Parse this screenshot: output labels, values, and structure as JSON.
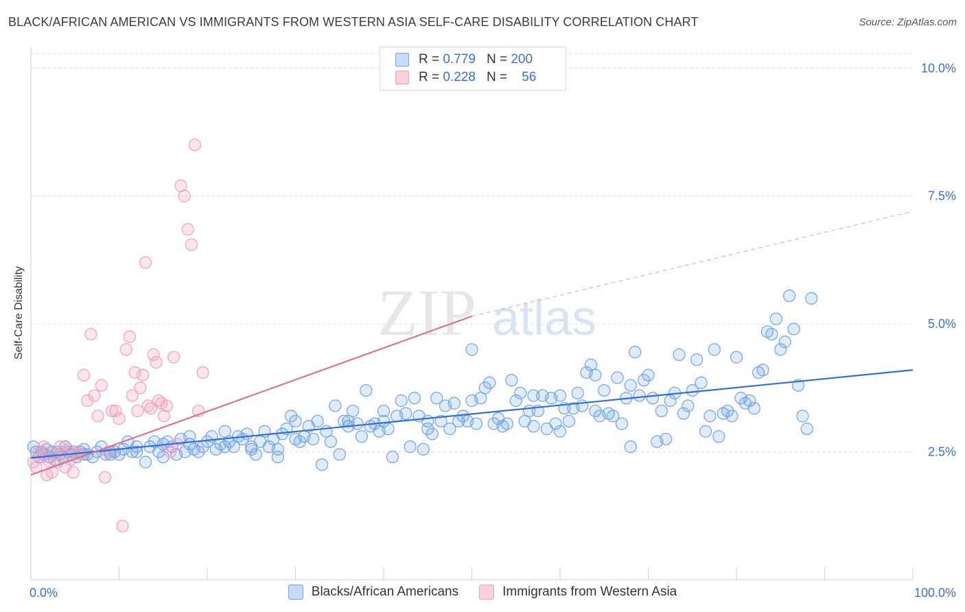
{
  "title": "BLACK/AFRICAN AMERICAN VS IMMIGRANTS FROM WESTERN ASIA SELF-CARE DISABILITY CORRELATION CHART",
  "source": "Source: ZipAtlas.com",
  "watermark": {
    "zip": "ZIP",
    "atlas": "atlas"
  },
  "legend_top": [
    {
      "r_label": "R =",
      "r_value": "0.779",
      "n_label": "N =",
      "n_value": "200",
      "color": "#6fa2e6"
    },
    {
      "r_label": "R =",
      "r_value": "0.228",
      "n_label": "N =",
      "n_value": "56",
      "color": "#f0a0bc"
    }
  ],
  "legend_bottom": [
    {
      "label": "Blacks/African Americans",
      "color": "#6fa2e6"
    },
    {
      "label": "Immigrants from Western Asia",
      "color": "#f0a0bc"
    }
  ],
  "chart_data": {
    "type": "scatter",
    "title": "BLACK/AFRICAN AMERICAN VS IMMIGRANTS FROM WESTERN ASIA SELF-CARE DISABILITY CORRELATION CHART",
    "xlabel": "",
    "ylabel": "Self-Care Disability",
    "xlim": [
      0,
      100
    ],
    "ylim": [
      0,
      10.5
    ],
    "x_tick_labels": [
      "0.0%",
      "100.0%"
    ],
    "y_ticks": [
      2.5,
      5.0,
      7.5,
      10.0
    ],
    "y_tick_labels": [
      "2.5%",
      "5.0%",
      "7.5%",
      "10.0%"
    ],
    "grid": "horizontal dashed",
    "legend_placement": "top-center and bottom",
    "series": [
      {
        "name": "Blacks/African Americans",
        "color": "#6fa2e6",
        "trend": {
          "x": [
            0,
            100
          ],
          "y": [
            2.38,
            4.1
          ]
        },
        "points": [
          [
            0.3,
            2.6
          ],
          [
            0.6,
            2.5
          ],
          [
            0.9,
            2.4
          ],
          [
            1.2,
            2.5
          ],
          [
            1.5,
            2.45
          ],
          [
            1.8,
            2.55
          ],
          [
            2.1,
            2.4
          ],
          [
            2.4,
            2.5
          ],
          [
            2.7,
            2.35
          ],
          [
            3.0,
            2.5
          ],
          [
            3.3,
            2.45
          ],
          [
            3.6,
            2.4
          ],
          [
            3.9,
            2.6
          ],
          [
            4.2,
            2.5
          ],
          [
            4.5,
            2.45
          ],
          [
            4.8,
            2.5
          ],
          [
            5.2,
            2.4
          ],
          [
            5.6,
            2.5
          ],
          [
            6.0,
            2.55
          ],
          [
            6.4,
            2.45
          ],
          [
            7.0,
            2.4
          ],
          [
            7.5,
            2.5
          ],
          [
            8.0,
            2.6
          ],
          [
            8.5,
            2.45
          ],
          [
            9.0,
            2.5
          ],
          [
            9.5,
            2.5
          ],
          [
            10.0,
            2.45
          ],
          [
            10.5,
            2.55
          ],
          [
            11.0,
            2.7
          ],
          [
            11.5,
            2.5
          ],
          [
            12.0,
            2.6
          ],
          [
            13.0,
            2.3
          ],
          [
            13.5,
            2.6
          ],
          [
            14.0,
            2.7
          ],
          [
            14.5,
            2.5
          ],
          [
            15.0,
            2.65
          ],
          [
            15.5,
            2.7
          ],
          [
            16.0,
            2.6
          ],
          [
            16.5,
            2.45
          ],
          [
            17.0,
            2.75
          ],
          [
            17.5,
            2.5
          ],
          [
            18.0,
            2.65
          ],
          [
            18.5,
            2.55
          ],
          [
            19.0,
            2.5
          ],
          [
            19.5,
            2.6
          ],
          [
            20.0,
            2.7
          ],
          [
            20.5,
            2.8
          ],
          [
            21.0,
            2.55
          ],
          [
            21.5,
            2.65
          ],
          [
            22.0,
            2.6
          ],
          [
            22.5,
            2.7
          ],
          [
            23.0,
            2.6
          ],
          [
            23.5,
            2.8
          ],
          [
            24.0,
            2.75
          ],
          [
            24.5,
            2.85
          ],
          [
            25.0,
            2.55
          ],
          [
            25.5,
            2.45
          ],
          [
            26.0,
            2.7
          ],
          [
            26.5,
            2.9
          ],
          [
            27.0,
            2.6
          ],
          [
            27.5,
            2.75
          ],
          [
            28.0,
            2.55
          ],
          [
            28.5,
            2.85
          ],
          [
            29.0,
            2.95
          ],
          [
            29.5,
            3.2
          ],
          [
            30.0,
            2.75
          ],
          [
            30.5,
            2.7
          ],
          [
            31.0,
            2.8
          ],
          [
            31.5,
            3.0
          ],
          [
            32.0,
            2.75
          ],
          [
            32.5,
            3.1
          ],
          [
            33.0,
            2.25
          ],
          [
            33.5,
            2.9
          ],
          [
            34.0,
            2.7
          ],
          [
            34.5,
            3.4
          ],
          [
            35.0,
            2.45
          ],
          [
            35.5,
            3.1
          ],
          [
            36.0,
            3.0
          ],
          [
            36.5,
            3.3
          ],
          [
            37.0,
            3.05
          ],
          [
            37.5,
            2.8
          ],
          [
            38.0,
            3.7
          ],
          [
            38.5,
            3.0
          ],
          [
            39.0,
            3.05
          ],
          [
            39.5,
            2.9
          ],
          [
            40.0,
            3.1
          ],
          [
            40.5,
            2.95
          ],
          [
            41.0,
            2.4
          ],
          [
            41.5,
            3.2
          ],
          [
            42.0,
            3.5
          ],
          [
            42.5,
            3.25
          ],
          [
            43.0,
            2.6
          ],
          [
            43.5,
            3.55
          ],
          [
            44.0,
            3.2
          ],
          [
            44.5,
            2.55
          ],
          [
            45.0,
            2.95
          ],
          [
            45.5,
            2.85
          ],
          [
            46.0,
            3.55
          ],
          [
            46.5,
            3.1
          ],
          [
            47.0,
            3.4
          ],
          [
            47.5,
            2.95
          ],
          [
            48.0,
            3.45
          ],
          [
            48.5,
            3.1
          ],
          [
            49.0,
            3.2
          ],
          [
            49.5,
            3.1
          ],
          [
            50.0,
            3.5
          ],
          [
            50.5,
            3.05
          ],
          [
            51.0,
            3.55
          ],
          [
            51.5,
            3.75
          ],
          [
            52.0,
            3.85
          ],
          [
            52.5,
            3.05
          ],
          [
            53.0,
            3.15
          ],
          [
            53.5,
            3.0
          ],
          [
            54.0,
            3.05
          ],
          [
            54.5,
            3.9
          ],
          [
            55.0,
            3.5
          ],
          [
            55.5,
            3.65
          ],
          [
            56.0,
            3.1
          ],
          [
            56.5,
            3.3
          ],
          [
            57.0,
            3.6
          ],
          [
            57.5,
            3.3
          ],
          [
            58.0,
            3.6
          ],
          [
            58.5,
            2.95
          ],
          [
            59.0,
            3.55
          ],
          [
            59.5,
            3.05
          ],
          [
            60.0,
            3.6
          ],
          [
            60.5,
            3.35
          ],
          [
            61.0,
            3.1
          ],
          [
            61.5,
            3.35
          ],
          [
            62.0,
            3.65
          ],
          [
            62.5,
            3.4
          ],
          [
            63.0,
            4.05
          ],
          [
            63.5,
            4.2
          ],
          [
            64.0,
            4.0
          ],
          [
            64.5,
            3.2
          ],
          [
            65.0,
            3.7
          ],
          [
            65.5,
            3.25
          ],
          [
            66.0,
            3.2
          ],
          [
            66.5,
            3.95
          ],
          [
            67.0,
            3.05
          ],
          [
            67.5,
            3.55
          ],
          [
            68.0,
            3.8
          ],
          [
            68.5,
            4.45
          ],
          [
            69.0,
            3.6
          ],
          [
            69.5,
            3.9
          ],
          [
            70.0,
            4.0
          ],
          [
            70.5,
            3.55
          ],
          [
            71.0,
            2.7
          ],
          [
            71.5,
            3.3
          ],
          [
            72.0,
            2.75
          ],
          [
            72.5,
            3.5
          ],
          [
            73.0,
            3.65
          ],
          [
            73.5,
            4.4
          ],
          [
            74.0,
            3.25
          ],
          [
            74.5,
            3.4
          ],
          [
            75.0,
            3.7
          ],
          [
            75.5,
            4.3
          ],
          [
            76.0,
            3.85
          ],
          [
            76.5,
            2.9
          ],
          [
            77.0,
            3.2
          ],
          [
            77.5,
            4.5
          ],
          [
            78.0,
            2.8
          ],
          [
            78.5,
            3.25
          ],
          [
            79.0,
            3.3
          ],
          [
            79.5,
            3.2
          ],
          [
            80.0,
            4.35
          ],
          [
            80.5,
            3.55
          ],
          [
            81.0,
            3.45
          ],
          [
            81.5,
            3.5
          ],
          [
            82.0,
            3.35
          ],
          [
            82.5,
            4.05
          ],
          [
            83.0,
            4.1
          ],
          [
            83.5,
            4.85
          ],
          [
            84.0,
            4.8
          ],
          [
            84.5,
            5.1
          ],
          [
            85.0,
            4.5
          ],
          [
            85.5,
            4.65
          ],
          [
            86.0,
            5.55
          ],
          [
            86.5,
            4.9
          ],
          [
            87.0,
            3.8
          ],
          [
            87.5,
            3.2
          ],
          [
            88.0,
            2.95
          ],
          [
            88.5,
            5.5
          ],
          [
            64.0,
            3.3
          ],
          [
            60.0,
            2.9
          ],
          [
            57.0,
            3.0
          ],
          [
            50.0,
            4.5
          ],
          [
            45.0,
            3.1
          ],
          [
            40.0,
            3.3
          ],
          [
            36.0,
            3.1
          ],
          [
            30.0,
            3.1
          ],
          [
            28.0,
            2.4
          ],
          [
            25.0,
            2.6
          ],
          [
            22.0,
            2.9
          ],
          [
            18.0,
            2.8
          ],
          [
            15.0,
            2.4
          ],
          [
            12.0,
            2.5
          ],
          [
            9.0,
            2.45
          ],
          [
            6.0,
            2.45
          ],
          [
            68.0,
            2.6
          ]
        ]
      },
      {
        "name": "Immigrants from Western Asia",
        "color": "#f0a0bc",
        "trend": {
          "x": [
            0,
            50
          ],
          "y": [
            2.05,
            5.15
          ]
        },
        "trend_extension": {
          "x": [
            50,
            100
          ],
          "y": [
            5.15,
            7.2
          ]
        },
        "points": [
          [
            0.3,
            2.3
          ],
          [
            0.6,
            2.2
          ],
          [
            0.9,
            2.5
          ],
          [
            1.2,
            2.4
          ],
          [
            1.5,
            2.6
          ],
          [
            1.8,
            2.05
          ],
          [
            2.1,
            2.3
          ],
          [
            2.4,
            2.1
          ],
          [
            2.7,
            2.45
          ],
          [
            3.0,
            2.3
          ],
          [
            3.3,
            2.6
          ],
          [
            3.6,
            2.5
          ],
          [
            3.9,
            2.2
          ],
          [
            4.2,
            2.55
          ],
          [
            4.5,
            2.35
          ],
          [
            4.8,
            2.1
          ],
          [
            5.2,
            2.5
          ],
          [
            5.6,
            2.45
          ],
          [
            6.0,
            4.0
          ],
          [
            6.4,
            3.5
          ],
          [
            6.8,
            4.8
          ],
          [
            7.2,
            3.6
          ],
          [
            7.6,
            3.2
          ],
          [
            8.0,
            3.8
          ],
          [
            8.4,
            2.0
          ],
          [
            8.8,
            2.5
          ],
          [
            9.2,
            3.3
          ],
          [
            9.6,
            3.3
          ],
          [
            10.0,
            3.15
          ],
          [
            10.4,
            1.05
          ],
          [
            10.8,
            4.5
          ],
          [
            11.2,
            4.75
          ],
          [
            11.5,
            3.6
          ],
          [
            11.8,
            4.05
          ],
          [
            12.1,
            3.3
          ],
          [
            12.4,
            3.75
          ],
          [
            12.7,
            4.0
          ],
          [
            13.0,
            6.2
          ],
          [
            13.3,
            3.4
          ],
          [
            13.6,
            3.35
          ],
          [
            13.9,
            4.4
          ],
          [
            14.2,
            4.25
          ],
          [
            14.5,
            3.5
          ],
          [
            14.8,
            3.45
          ],
          [
            15.1,
            3.2
          ],
          [
            15.4,
            3.4
          ],
          [
            15.8,
            2.5
          ],
          [
            16.2,
            4.35
          ],
          [
            16.6,
            2.65
          ],
          [
            17.0,
            7.7
          ],
          [
            17.4,
            7.5
          ],
          [
            17.8,
            6.85
          ],
          [
            18.2,
            6.55
          ],
          [
            18.6,
            8.5
          ],
          [
            19.0,
            3.3
          ],
          [
            19.5,
            4.05
          ]
        ]
      }
    ]
  }
}
